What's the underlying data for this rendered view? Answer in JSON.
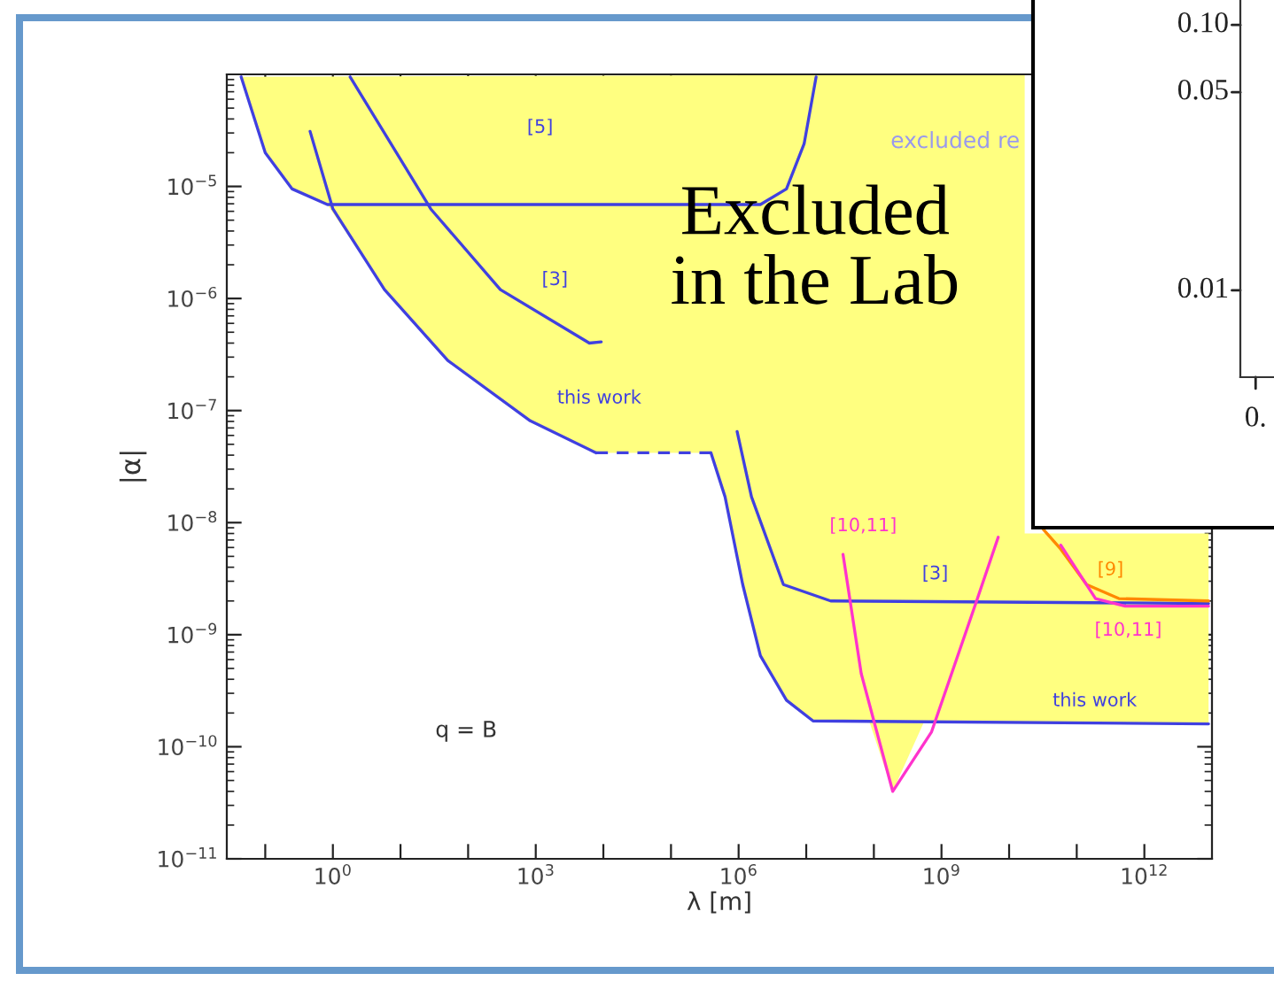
{
  "chart_data": [
    {
      "type": "line",
      "xlabel": "λ [m]",
      "ylabel": "|α|",
      "log": "xy",
      "xlim": [
        0.027,
        10000000000000.0
      ],
      "ylim": [
        1e-11,
        0.0001
      ],
      "xticks": [
        {
          "value": 0.1,
          "label": null
        },
        {
          "value": 1,
          "label": "10$^{0}$"
        },
        {
          "value": 10,
          "label": null
        },
        {
          "value": 100,
          "label": null
        },
        {
          "value": 1000,
          "label": "10$^{3}$"
        },
        {
          "value": 10000.0,
          "label": null
        },
        {
          "value": 100000.0,
          "label": null
        },
        {
          "value": 1000000.0,
          "label": "10$^{6}$"
        },
        {
          "value": 10000000.0,
          "label": null
        },
        {
          "value": 100000000.0,
          "label": null
        },
        {
          "value": 1000000000.0,
          "label": "10$^{9}$"
        },
        {
          "value": 10000000000.0,
          "label": null
        },
        {
          "value": 100000000000.0,
          "label": null
        },
        {
          "value": 1000000000000.0,
          "label": "10$^{12}$"
        }
      ],
      "yticks": [
        {
          "value": 1e-11,
          "label": "10$^{−11}$"
        },
        {
          "value": 1e-10,
          "label": "10$^{−10}$"
        },
        {
          "value": 1e-09,
          "label": "10$^{−9}$"
        },
        {
          "value": 1e-08,
          "label": "10$^{−8}$"
        },
        {
          "value": 1e-07,
          "label": "10$^{−7}$"
        },
        {
          "value": 1e-06,
          "label": "10$^{−6}$"
        },
        {
          "value": 1e-05,
          "label": "10$^{−5}$"
        }
      ],
      "series": [
        {
          "type": "area",
          "color": "#ffff80",
          "x": [
            0.044,
            0.1,
            0.25,
            0.83,
            5.8,
            50,
            830,
            7800,
            390000,
            630000,
            1150000.0,
            2100000.0,
            5100000.0,
            12600000.0,
            85000000.0,
            190000000.0,
            560000000.0,
            8900000000000.0,
            8900000000000.0,
            17000000000.0,
            17000000000.0
          ],
          "values": [
            9.5e-05,
            2e-05,
            9.5e-06,
            6.9e-06,
            1.2e-06,
            2.8e-07,
            8.1e-08,
            4.2e-08,
            4.2e-08,
            1.7e-08,
            2.8e-09,
            6.5e-10,
            2.6e-10,
            1.7e-10,
            1.7e-10,
            4e-11,
            1.7e-10,
            1.6e-10,
            8e-09,
            8e-09,
            0.0001
          ]
        },
        {
          "type": "line",
          "color": "#4040e0",
          "line_style": "solid",
          "x": [
            0.044,
            0.1,
            0.25,
            0.83,
            2100000.0,
            5100000.0,
            9300000.0,
            14000000.0
          ],
          "values": [
            9.5e-05,
            2e-05,
            9.5e-06,
            6.9e-06,
            6.9e-06,
            9.5e-06,
            2.4e-05,
            9.5e-05
          ]
        },
        {
          "type": "line",
          "color": "#4040e0",
          "line_style": "solid",
          "x": [
            1.8,
            28,
            300,
            6200,
            9300
          ],
          "values": [
            9.5e-05,
            6.3e-06,
            1.2e-06,
            4e-07,
            4.1e-07
          ]
        },
        {
          "type": "line",
          "color": "#4040e0",
          "line_style": "solid",
          "x": [
            950000,
            1550000.0,
            4600000.0,
            23000000.0,
            8900000000000.0
          ],
          "values": [
            6.5e-08,
            1.7e-08,
            2.8e-09,
            2e-09,
            1.9e-09
          ]
        },
        {
          "type": "line",
          "color": "#4040e0",
          "line_style": "solid",
          "x": [
            0.46,
            1,
            5.8,
            50,
            830,
            7800
          ],
          "values": [
            3.1e-05,
            6.3e-06,
            1.2e-06,
            2.8e-07,
            8.1e-08,
            4.2e-08
          ]
        },
        {
          "type": "line",
          "color": "#4040e0",
          "line_style": "dashed",
          "x": [
            7800,
            390000
          ],
          "values": [
            4.2e-08,
            4.2e-08
          ]
        },
        {
          "type": "line",
          "color": "#4040e0",
          "line_style": "solid",
          "x": [
            390000,
            630000,
            1150000.0,
            2100000.0,
            5100000.0,
            12600000.0,
            8900000000000.0
          ],
          "values": [
            4.2e-08,
            1.7e-08,
            2.8e-09,
            6.5e-10,
            2.6e-10,
            1.7e-10,
            1.6e-10
          ]
        },
        {
          "type": "line",
          "color": "#ff33cc",
          "line_style": "solid",
          "x": [
            35000000.0,
            65000000.0,
            190000000.0,
            710000000.0,
            3400000000.0,
            6900000000.0
          ],
          "values": [
            5.2e-09,
            4.5e-10,
            4e-11,
            1.35e-10,
            2.1e-09,
            7.4e-09
          ]
        },
        {
          "type": "line",
          "color": "#ff8800",
          "line_style": "solid",
          "x": [
            32000000000.0,
            58000000000.0,
            140000000000.0,
            420000000000.0,
            8900000000000.0
          ],
          "values": [
            8.7e-09,
            5.8e-09,
            2.8e-09,
            2.1e-09,
            2e-09
          ]
        },
        {
          "type": "line",
          "color": "#ff33cc",
          "line_style": "solid",
          "x": [
            58000000000.0,
            190000000000.0,
            520000000000.0,
            8900000000000.0
          ],
          "values": [
            6.3e-09,
            2.1e-09,
            1.8e-09,
            1.8e-09
          ]
        }
      ],
      "annotations": [
        "[5]",
        "[3]",
        "this work",
        "[10,11]",
        "[3]",
        "[9]",
        "[10,11]",
        "this work",
        "excluded re",
        "Excluded\nin the Lab",
        "q = B"
      ]
    },
    {
      "type": "other",
      "annotations": [
        "0.10",
        "0.05",
        "0.01",
        "0."
      ]
    }
  ]
}
